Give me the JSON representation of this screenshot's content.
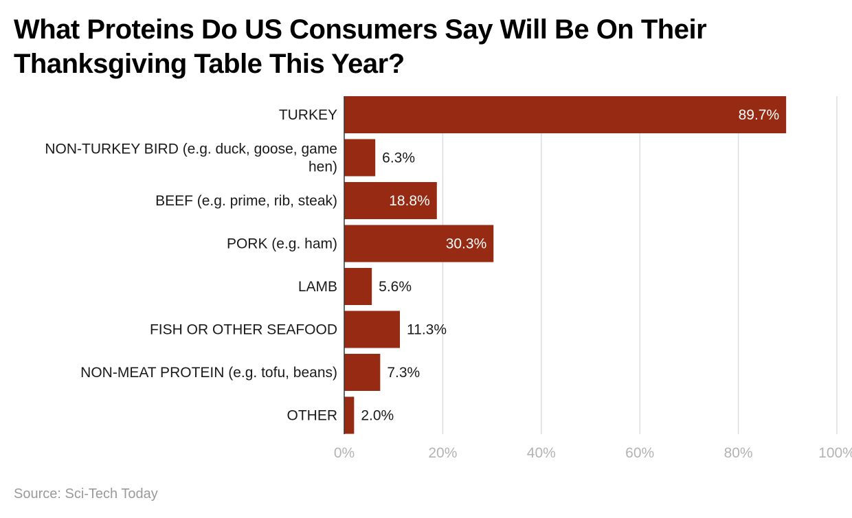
{
  "chart_data": {
    "type": "bar",
    "orientation": "horizontal",
    "title": "What Proteins Do US Consumers Say Will Be On Their Thanksgiving Table This Year?",
    "categories": [
      [
        "TURKEY"
      ],
      [
        "NON-TURKEY BIRD (e.g. duck, goose, game",
        "hen)"
      ],
      [
        "BEEF (e.g. prime, rib, steak)"
      ],
      [
        "PORK (e.g. ham)"
      ],
      [
        "LAMB"
      ],
      [
        "FISH OR OTHER SEAFOOD"
      ],
      [
        "NON-MEAT PROTEIN (e.g. tofu, beans)"
      ],
      [
        "OTHER"
      ]
    ],
    "values": [
      89.7,
      6.3,
      18.8,
      30.3,
      5.6,
      11.3,
      7.3,
      2.0
    ],
    "value_labels": [
      "89.7%",
      "6.3%",
      "18.8%",
      "30.3%",
      "5.6%",
      "11.3%",
      "7.3%",
      "2.0%"
    ],
    "xlim": [
      0,
      100
    ],
    "x_ticks": [
      "0%",
      "20%",
      "40%",
      "60%",
      "80%",
      "100%"
    ],
    "grid": true,
    "bar_color": "#962a12",
    "source": "Source: Sci-Tech Today"
  }
}
